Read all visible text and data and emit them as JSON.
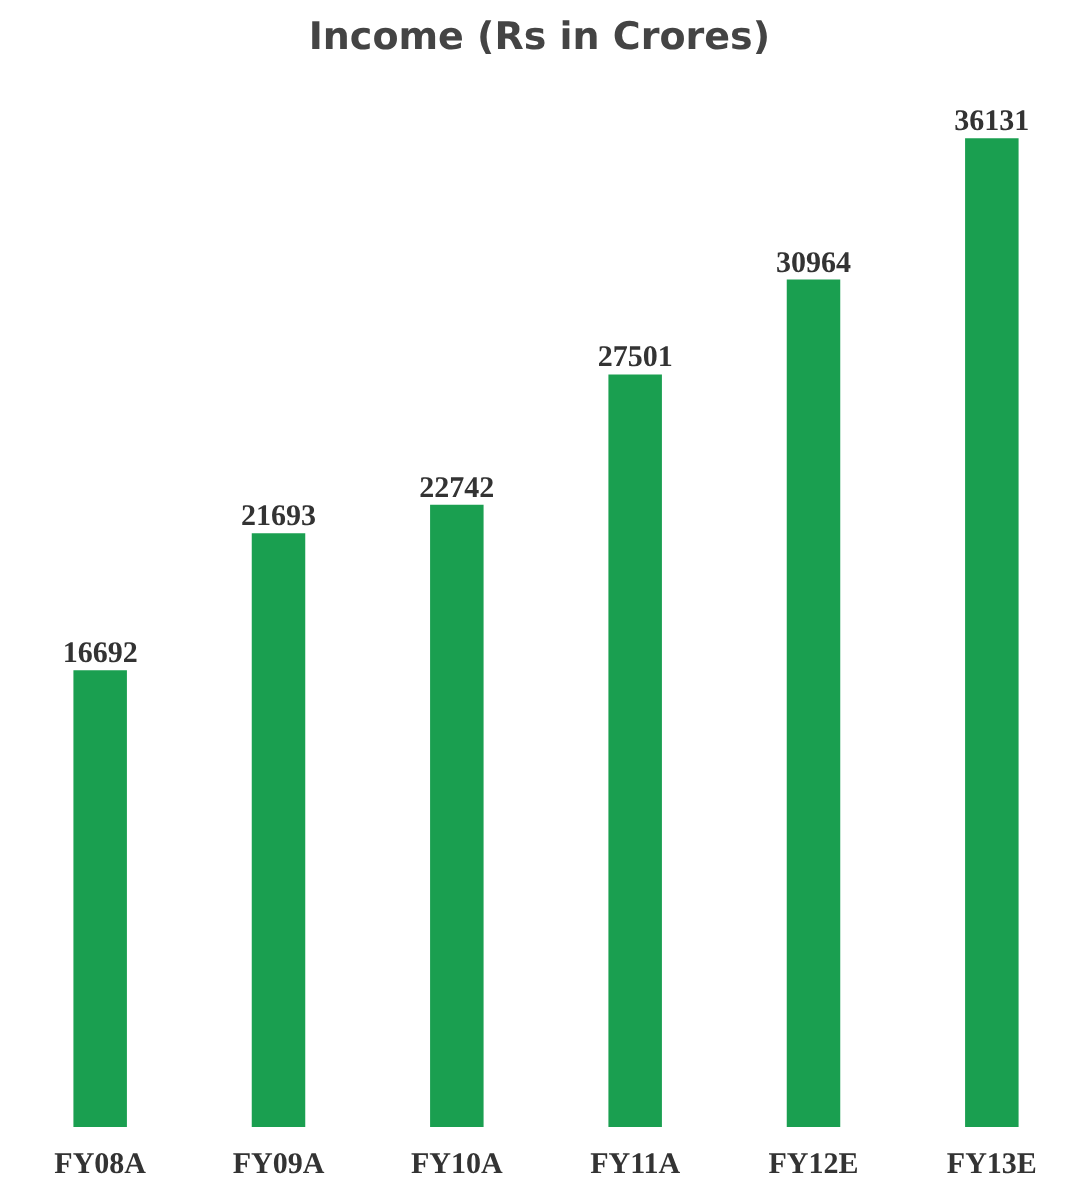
{
  "chart_data": {
    "type": "bar",
    "title": "Income  (Rs in Crores)",
    "categories": [
      "FY08A",
      "FY09A",
      "FY10A",
      "FY11A",
      "FY12E",
      "FY13E"
    ],
    "values": [
      16692,
      21693,
      22742,
      27501,
      30964,
      36131
    ],
    "color": "#1a9f50",
    "data_labels": true,
    "grid": false
  }
}
